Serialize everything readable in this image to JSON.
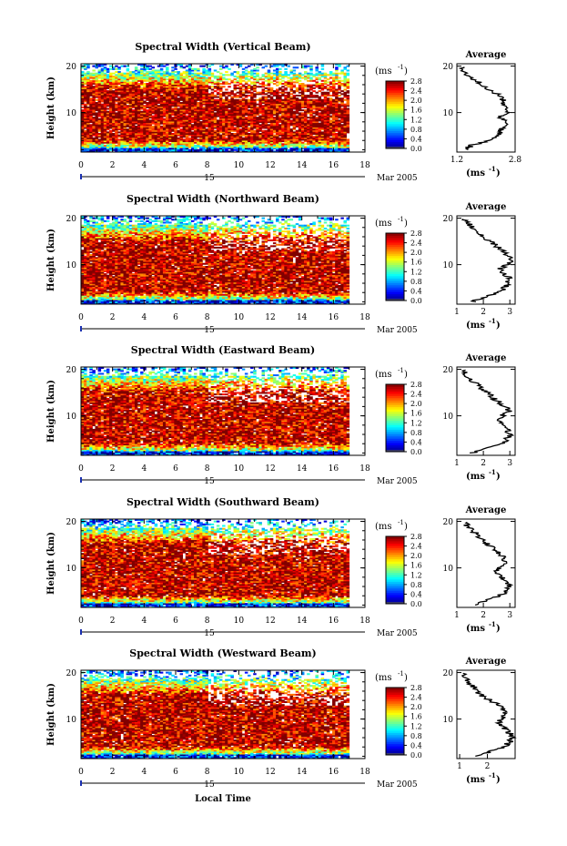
{
  "chart_data": {
    "type": "heatmap",
    "date_label": "15",
    "month_label": "Mar 2005",
    "xlabel_bottom": "Local Time",
    "x_ticks": [
      "0",
      "2",
      "4",
      "6",
      "8",
      "10",
      "12",
      "14",
      "16",
      "18"
    ],
    "x_range": [
      0,
      18
    ],
    "data_end_hour": 17,
    "y_ticks": [
      "20",
      "10"
    ],
    "y_range": [
      1.5,
      20.5
    ],
    "ylabel": "Height (km)",
    "colorbar_unit": "(ms",
    "colorbar_unit_sup": "-1",
    "colorbar_unit_close": ")",
    "colorbar_ticks": [
      "2.8",
      "2.4",
      "2.0",
      "1.6",
      "1.2",
      "0.8",
      "0.4",
      "0.0"
    ],
    "colorbar_range": [
      0.0,
      2.8
    ],
    "avg_title": "Average",
    "avg_xlabel": "(ms",
    "panels": [
      {
        "title": "Spectral Width (Vertical Beam)",
        "avg_xticks": [
          "1.2",
          "2.8"
        ],
        "avg_xrange": [
          1.2,
          2.8
        ],
        "profile": [
          [
            2,
            1.45
          ],
          [
            3,
            1.6
          ],
          [
            4,
            2.1
          ],
          [
            5,
            2.3
          ],
          [
            6,
            2.4
          ],
          [
            7,
            2.5
          ],
          [
            8,
            2.55
          ],
          [
            9,
            2.4
          ],
          [
            10,
            2.55
          ],
          [
            11,
            2.6
          ],
          [
            12,
            2.5
          ],
          [
            13,
            2.45
          ],
          [
            14,
            2.3
          ],
          [
            15,
            2.1
          ],
          [
            16,
            1.9
          ],
          [
            17,
            1.7
          ],
          [
            18,
            1.5
          ],
          [
            19,
            1.35
          ],
          [
            20,
            1.3
          ]
        ]
      },
      {
        "title": "Spectral Width (Northward Beam)",
        "avg_xticks": [
          "1",
          "2",
          "3"
        ],
        "avg_xrange": [
          1,
          3.2
        ],
        "profile": [
          [
            2,
            1.6
          ],
          [
            3,
            2.0
          ],
          [
            4,
            2.6
          ],
          [
            5,
            2.8
          ],
          [
            6,
            2.9
          ],
          [
            7,
            3.0
          ],
          [
            8,
            2.8
          ],
          [
            9,
            2.6
          ],
          [
            10,
            2.9
          ],
          [
            11,
            3.1
          ],
          [
            12,
            2.9
          ],
          [
            13,
            2.7
          ],
          [
            14,
            2.5
          ],
          [
            15,
            2.3
          ],
          [
            16,
            2.0
          ],
          [
            17,
            1.8
          ],
          [
            18,
            1.6
          ],
          [
            19,
            1.4
          ],
          [
            20,
            1.3
          ]
        ]
      },
      {
        "title": "Spectral Width (Eastward Beam)",
        "avg_xticks": [
          "1",
          "2",
          "3"
        ],
        "avg_xrange": [
          1,
          3.2
        ],
        "profile": [
          [
            2,
            1.6
          ],
          [
            3,
            2.1
          ],
          [
            4,
            2.7
          ],
          [
            5,
            2.9
          ],
          [
            6,
            3.0
          ],
          [
            7,
            2.9
          ],
          [
            8,
            2.8
          ],
          [
            9,
            2.5
          ],
          [
            10,
            2.7
          ],
          [
            11,
            3.0
          ],
          [
            12,
            2.8
          ],
          [
            13,
            2.6
          ],
          [
            14,
            2.3
          ],
          [
            15,
            2.2
          ],
          [
            16,
            1.9
          ],
          [
            17,
            1.7
          ],
          [
            18,
            1.5
          ],
          [
            19,
            1.3
          ],
          [
            20,
            1.2
          ]
        ]
      },
      {
        "title": "Spectral Width (Southward Beam)",
        "avg_xticks": [
          "1",
          "2",
          "3"
        ],
        "avg_xrange": [
          1,
          3.2
        ],
        "profile": [
          [
            2,
            1.6
          ],
          [
            3,
            2.1
          ],
          [
            4,
            2.6
          ],
          [
            5,
            2.9
          ],
          [
            6,
            3.0
          ],
          [
            7,
            2.9
          ],
          [
            8,
            2.7
          ],
          [
            9,
            2.5
          ],
          [
            10,
            2.6
          ],
          [
            11,
            2.9
          ],
          [
            12,
            2.8
          ],
          [
            13,
            2.6
          ],
          [
            14,
            2.4
          ],
          [
            15,
            2.2
          ],
          [
            16,
            2.0
          ],
          [
            17,
            1.8
          ],
          [
            18,
            1.6
          ],
          [
            19,
            1.4
          ],
          [
            20,
            1.3
          ]
        ]
      },
      {
        "title": "Spectral Width (Westward Beam)",
        "avg_xticks": [
          "1",
          "2"
        ],
        "avg_xrange": [
          0.9,
          3.0
        ],
        "profile": [
          [
            2,
            1.6
          ],
          [
            3,
            2.1
          ],
          [
            4,
            2.6
          ],
          [
            5,
            2.8
          ],
          [
            6,
            2.9
          ],
          [
            7,
            2.8
          ],
          [
            8,
            2.6
          ],
          [
            9,
            2.4
          ],
          [
            10,
            2.5
          ],
          [
            11,
            2.7
          ],
          [
            12,
            2.6
          ],
          [
            13,
            2.4
          ],
          [
            14,
            2.1
          ],
          [
            15,
            1.8
          ],
          [
            16,
            1.6
          ],
          [
            17,
            1.5
          ],
          [
            18,
            1.3
          ],
          [
            19,
            1.2
          ],
          [
            20,
            1.1
          ]
        ]
      }
    ]
  }
}
